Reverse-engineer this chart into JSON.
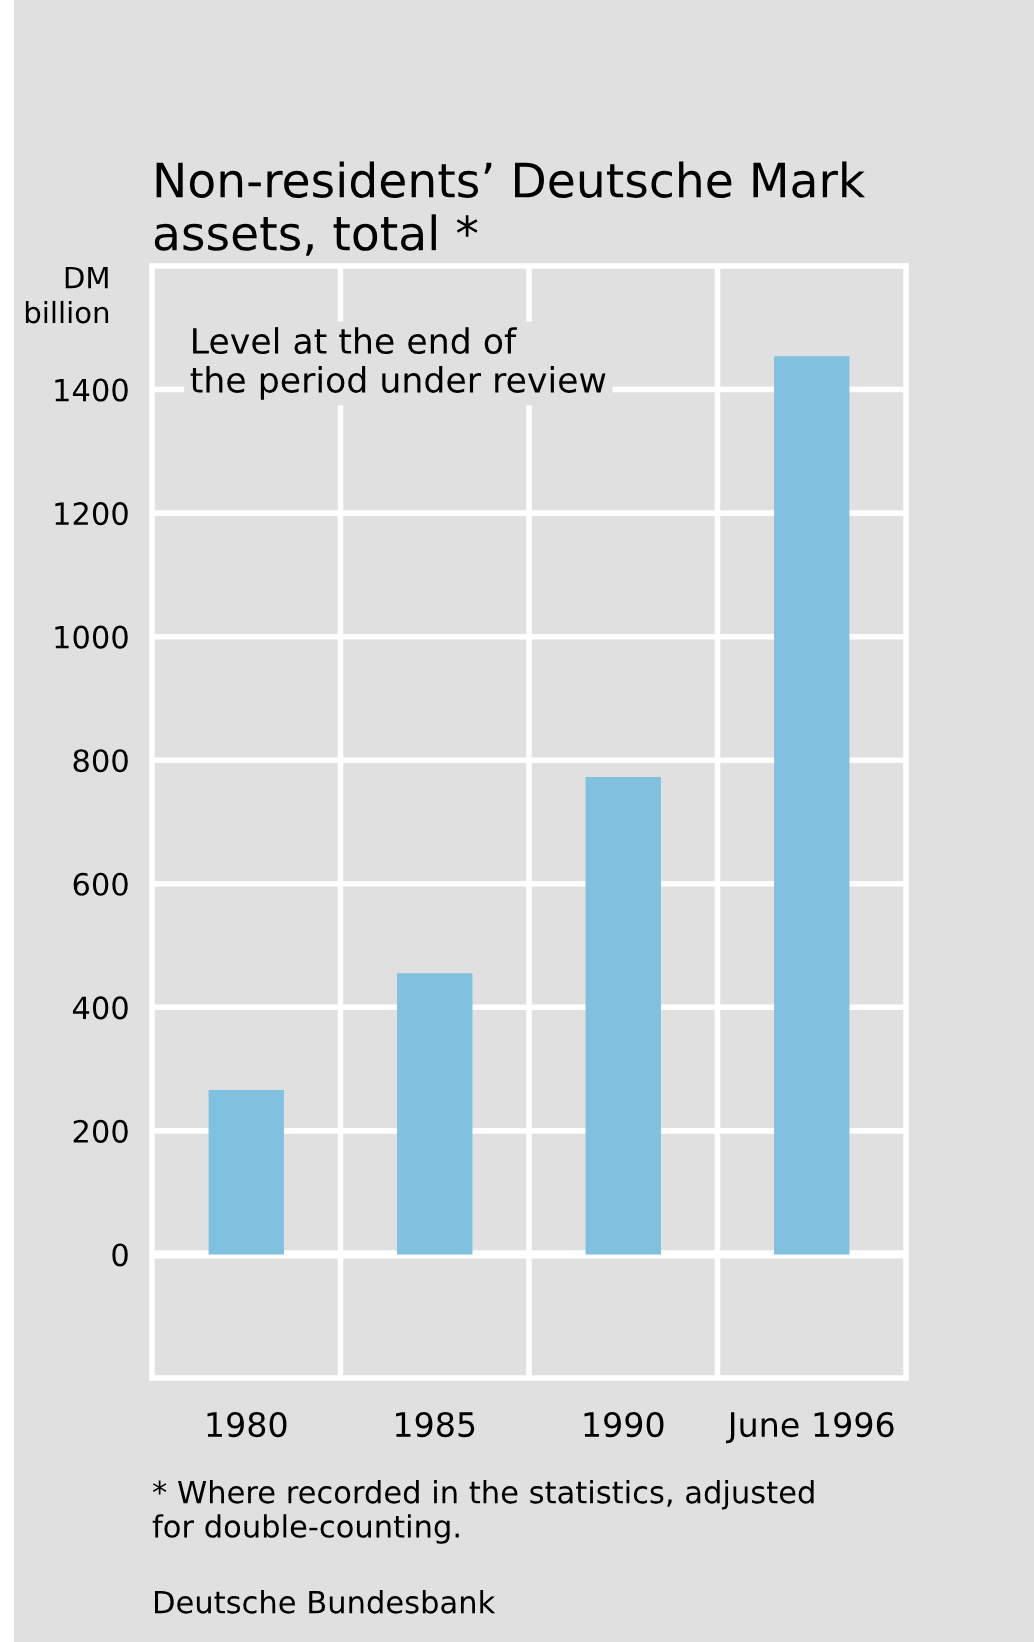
{
  "chart_data": {
    "type": "bar",
    "title": "Non-residents’ Deutsche Mark\nassets, total *",
    "ylabel": "DM\nbillion",
    "categories": [
      "1980",
      "1985",
      "1990",
      "June 1996"
    ],
    "values": [
      266,
      455,
      773,
      1454
    ],
    "color": "#80c1df",
    "ylim": [
      -200,
      1600
    ],
    "yticks": [
      0,
      200,
      400,
      600,
      800,
      1000,
      1200,
      1400
    ],
    "grid": true,
    "annotations": [
      "Level at the end of\nthe period under review",
      "* Where recorded in the statistics, adjusted\nfor double-counting.",
      "Deutsche Bundesbank"
    ]
  }
}
